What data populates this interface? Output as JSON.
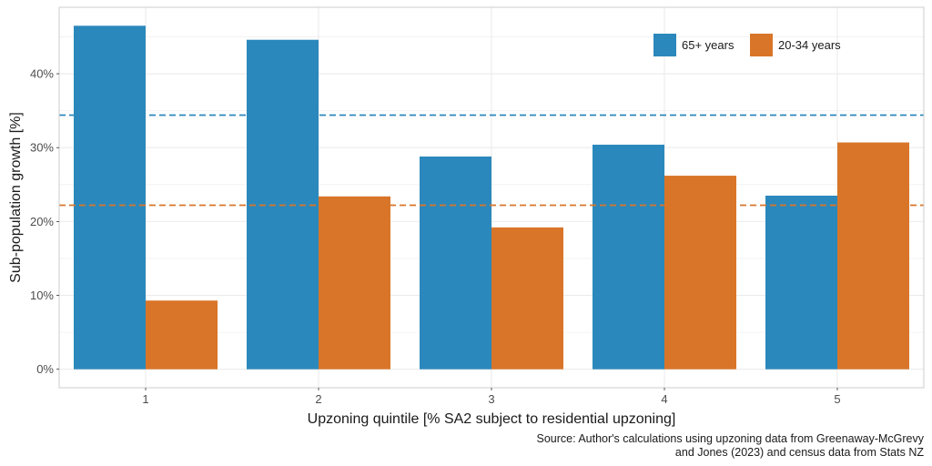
{
  "chart_data": {
    "type": "bar",
    "categories": [
      "1",
      "2",
      "3",
      "4",
      "5"
    ],
    "series": [
      {
        "name": "65+ years",
        "values": [
          46.5,
          44.6,
          28.8,
          30.4,
          23.5
        ]
      },
      {
        "name": "20-34 years",
        "values": [
          9.3,
          23.4,
          19.2,
          26.2,
          30.7
        ]
      }
    ],
    "reference_lines": [
      {
        "series": "65+ years",
        "value": 34.4,
        "style": "dashed"
      },
      {
        "series": "20-34 years",
        "value": 22.2,
        "style": "dashed"
      }
    ],
    "ylim": [
      -2.5,
      49
    ],
    "yticks": [
      0,
      10,
      20,
      30,
      40
    ],
    "ytick_labels": [
      "0%",
      "10%",
      "20%",
      "30%",
      "40%"
    ],
    "xlabel": "Upzoning quintile [% SA2 subject to residential upzoning]",
    "ylabel": "Sub-population growth [%]",
    "legend_position": "top-right",
    "grid": true,
    "source_line1": "Source: Author's calculations using upzoning data from Greenaway-McGrevy",
    "source_line2": "and Jones (2023) and census data from Stats NZ",
    "colors": {
      "65+ years": "#2b88bc",
      "20-34 years": "#d97528",
      "grid": "#ebebeb",
      "panel_border": "#cccccc"
    }
  }
}
